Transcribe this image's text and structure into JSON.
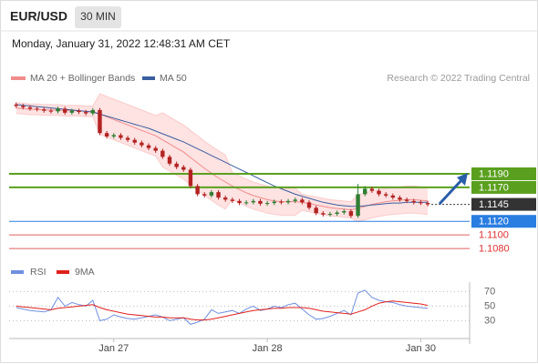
{
  "header": {
    "symbol": "EUR/USD",
    "interval": "30 MIN",
    "timestamp": "Monday, January 31, 2022 12:48:31 AM CET",
    "credit": "Research © 2022 Trading Central"
  },
  "chart_data": [
    {
      "type": "candlestick",
      "xlim": [
        -1,
        65
      ],
      "ylim": [
        1.1064,
        1.1312
      ],
      "candles": {
        "up_color": "#2e7d32",
        "down_color": "#b22222",
        "open": [
          1.1292,
          1.129,
          1.1288,
          1.1286,
          1.1285,
          1.1283,
          1.1282,
          1.1286,
          1.128,
          1.1283,
          1.1281,
          1.1279,
          1.1284,
          1.125,
          1.1245,
          1.1247,
          1.1243,
          1.124,
          1.1236,
          1.1232,
          1.1228,
          1.1224,
          1.1215,
          1.1205,
          1.12,
          1.1196,
          1.1172,
          1.116,
          1.1158,
          1.1163,
          1.1155,
          1.1152,
          1.115,
          1.1147,
          1.1148,
          1.115,
          1.1146,
          1.1147,
          1.1149,
          1.1148,
          1.115,
          1.1152,
          1.1148,
          1.114,
          1.1132,
          1.113,
          1.1131,
          1.1133,
          1.1135,
          1.1128,
          1.116,
          1.1168,
          1.1165,
          1.116,
          1.1158,
          1.1155,
          1.1152,
          1.115,
          1.1148,
          1.1147
        ],
        "high": [
          1.1295,
          1.1293,
          1.1291,
          1.1289,
          1.1288,
          1.1286,
          1.1289,
          1.1289,
          1.1286,
          1.1286,
          1.1284,
          1.1287,
          1.1287,
          1.1253,
          1.125,
          1.125,
          1.1246,
          1.1243,
          1.1239,
          1.1235,
          1.1231,
          1.1227,
          1.1218,
          1.1208,
          1.1203,
          1.1199,
          1.1175,
          1.1163,
          1.1166,
          1.1166,
          1.1158,
          1.1155,
          1.1153,
          1.1151,
          1.1153,
          1.1153,
          1.115,
          1.1152,
          1.1152,
          1.1153,
          1.1155,
          1.1155,
          1.1151,
          1.1143,
          1.1135,
          1.1134,
          1.1136,
          1.1138,
          1.1138,
          1.1175,
          1.1172,
          1.1171,
          1.1168,
          1.1163,
          1.1161,
          1.1158,
          1.1155,
          1.1153,
          1.1151,
          1.115
        ],
        "low": [
          1.1287,
          1.1285,
          1.1283,
          1.1282,
          1.128,
          1.1279,
          1.1279,
          1.1277,
          1.1277,
          1.1278,
          1.1276,
          1.1276,
          1.1247,
          1.1242,
          1.1242,
          1.124,
          1.1237,
          1.1233,
          1.1229,
          1.1225,
          1.1221,
          1.1212,
          1.1202,
          1.1197,
          1.1193,
          1.1169,
          1.1157,
          1.1155,
          1.1155,
          1.1152,
          1.1149,
          1.1147,
          1.1144,
          1.1144,
          1.1145,
          1.1143,
          1.1143,
          1.1144,
          1.1145,
          1.1145,
          1.1147,
          1.1145,
          1.1137,
          1.1129,
          1.1127,
          1.1127,
          1.1128,
          1.113,
          1.1125,
          1.1125,
          1.1157,
          1.1162,
          1.1157,
          1.1155,
          1.1152,
          1.1149,
          1.1147,
          1.1145,
          1.1144,
          1.1142
        ],
        "close": [
          1.129,
          1.1288,
          1.1286,
          1.1285,
          1.1283,
          1.1282,
          1.1286,
          1.128,
          1.1283,
          1.1281,
          1.1279,
          1.1284,
          1.125,
          1.1245,
          1.1247,
          1.1243,
          1.124,
          1.1236,
          1.1232,
          1.1228,
          1.1224,
          1.1215,
          1.1205,
          1.12,
          1.1196,
          1.1172,
          1.116,
          1.1158,
          1.1163,
          1.1155,
          1.1152,
          1.115,
          1.1147,
          1.1148,
          1.115,
          1.1146,
          1.1147,
          1.1149,
          1.1148,
          1.115,
          1.1152,
          1.1148,
          1.114,
          1.1132,
          1.113,
          1.1131,
          1.1133,
          1.1135,
          1.1128,
          1.116,
          1.1168,
          1.1165,
          1.116,
          1.1158,
          1.1155,
          1.1152,
          1.115,
          1.1148,
          1.1147,
          1.1145
        ]
      },
      "bands": {
        "name": "MA 20 + Bollinger Bands",
        "color": "#f08c8c",
        "fill": "#ffd6d6",
        "mid": [
          1.1287,
          1.1286,
          1.1285,
          1.1285,
          1.1284,
          1.1284,
          1.1284,
          1.1283,
          1.1283,
          1.1283,
          1.1282,
          1.1282,
          1.1278,
          1.1274,
          1.127,
          1.1266,
          1.1262,
          1.1258,
          1.1254,
          1.125,
          1.1246,
          1.124,
          1.1234,
          1.1228,
          1.1222,
          1.1214,
          1.1206,
          1.1198,
          1.1191,
          1.1184,
          1.1178,
          1.1172,
          1.1167,
          1.1162,
          1.1158,
          1.1155,
          1.1152,
          1.115,
          1.1149,
          1.1149,
          1.1149,
          1.1148,
          1.1146,
          1.1144,
          1.1142,
          1.114,
          1.1139,
          1.1138,
          1.1137,
          1.1139,
          1.1142,
          1.1145,
          1.1147,
          1.1149,
          1.115,
          1.1151,
          1.1152,
          1.1152,
          1.1151,
          1.115
        ],
        "upper": [
          1.1295,
          1.1294,
          1.1293,
          1.1293,
          1.1292,
          1.1292,
          1.1292,
          1.1291,
          1.1291,
          1.1291,
          1.129,
          1.129,
          1.1308,
          1.1304,
          1.13,
          1.1296,
          1.1292,
          1.1288,
          1.1284,
          1.128,
          1.1276,
          1.128,
          1.1274,
          1.1268,
          1.1262,
          1.1254,
          1.1246,
          1.1238,
          1.1231,
          1.1224,
          1.1218,
          1.1192,
          1.1187,
          1.1182,
          1.1178,
          1.1175,
          1.1172,
          1.117,
          1.1169,
          1.1169,
          1.1169,
          1.116,
          1.1158,
          1.1156,
          1.1154,
          1.1152,
          1.1151,
          1.115,
          1.1149,
          1.1159,
          1.1162,
          1.1165,
          1.1167,
          1.1169,
          1.117,
          1.1171,
          1.1172,
          1.1172,
          1.1171,
          1.117
        ],
        "lower": [
          1.1279,
          1.1278,
          1.1277,
          1.1277,
          1.1276,
          1.1276,
          1.1276,
          1.1275,
          1.1275,
          1.1275,
          1.1274,
          1.1274,
          1.1248,
          1.1244,
          1.124,
          1.1236,
          1.1232,
          1.1228,
          1.1224,
          1.122,
          1.1216,
          1.12,
          1.1194,
          1.1188,
          1.1182,
          1.1174,
          1.1166,
          1.1158,
          1.1151,
          1.1144,
          1.1138,
          1.1152,
          1.1147,
          1.1142,
          1.1138,
          1.1135,
          1.1132,
          1.113,
          1.1129,
          1.1129,
          1.1129,
          1.1136,
          1.1134,
          1.1132,
          1.113,
          1.1128,
          1.1127,
          1.1126,
          1.1125,
          1.1119,
          1.1122,
          1.1125,
          1.1127,
          1.1129,
          1.113,
          1.1131,
          1.1132,
          1.1132,
          1.1131,
          1.113
        ]
      },
      "series": [
        {
          "name": "MA 50",
          "color": "#3a5f9f",
          "values": [
            1.1292,
            1.1291,
            1.129,
            1.1289,
            1.1288,
            1.1287,
            1.1286,
            1.1285,
            1.1284,
            1.1283,
            1.1282,
            1.1281,
            1.1278,
            1.1275,
            1.1272,
            1.1269,
            1.1266,
            1.1263,
            1.126,
            1.1257,
            1.1253,
            1.1249,
            1.1245,
            1.1241,
            1.1237,
            1.1232,
            1.1227,
            1.1222,
            1.1217,
            1.1212,
            1.1207,
            1.1202,
            1.1197,
            1.1192,
            1.1187,
            1.1182,
            1.1177,
            1.1172,
            1.1168,
            1.1164,
            1.116,
            1.1157,
            1.1154,
            1.1151,
            1.1148,
            1.1146,
            1.1144,
            1.1143,
            1.1142,
            1.1142,
            1.1143,
            1.1144,
            1.1145,
            1.1146,
            1.1147,
            1.1147,
            1.1148,
            1.1148,
            1.1148,
            1.1148
          ]
        }
      ],
      "levels": [
        {
          "value": 1.119,
          "label": "1.1190",
          "color": "#5aa01e",
          "line": "solid",
          "width": 2,
          "label_style": "box"
        },
        {
          "value": 1.117,
          "label": "1.1170",
          "color": "#5aa01e",
          "line": "solid",
          "width": 2,
          "label_style": "box"
        },
        {
          "value": 1.1145,
          "label": "1.1145",
          "color": "#333333",
          "line": "dotted",
          "width": 1,
          "label_style": "box"
        },
        {
          "value": 1.112,
          "label": "1.1120",
          "color": "#2a7de1",
          "line": "solid",
          "width": 1,
          "label_style": "box"
        },
        {
          "value": 1.11,
          "label": "1.1100",
          "color": "#e06060",
          "line": "solid",
          "width": 1,
          "label_style": "text"
        },
        {
          "value": 1.108,
          "label": "1.1080",
          "color": "#e06060",
          "line": "solid",
          "width": 1,
          "label_style": "text"
        }
      ]
    },
    {
      "type": "line",
      "xlim": [
        -1,
        65
      ],
      "ylim": [
        8,
        83
      ],
      "yticks": [
        70,
        50,
        30
      ],
      "xticks": [
        {
          "value": 14,
          "label": "Jan 27"
        },
        {
          "value": 36,
          "label": "Jan 28"
        },
        {
          "value": 58,
          "label": "Jan 30"
        }
      ],
      "series": [
        {
          "name": "RSI",
          "color": "#6f8fe0",
          "values": [
            48,
            46,
            44,
            43,
            42,
            45,
            62,
            50,
            55,
            52,
            50,
            58,
            30,
            32,
            38,
            35,
            33,
            32,
            34,
            36,
            38,
            35,
            30,
            32,
            34,
            25,
            28,
            32,
            45,
            40,
            42,
            44,
            40,
            46,
            50,
            44,
            46,
            50,
            48,
            52,
            54,
            46,
            38,
            32,
            33,
            36,
            40,
            44,
            38,
            68,
            72,
            62,
            58,
            56,
            55,
            52,
            50,
            49,
            48,
            47
          ]
        },
        {
          "name": "9MA",
          "color": "#e0201b",
          "values": [
            50,
            49,
            48,
            47,
            46,
            45,
            47,
            48,
            49,
            50,
            51,
            52,
            48,
            45,
            43,
            41,
            39,
            38,
            37,
            36,
            35,
            35,
            34,
            34,
            34,
            32,
            31,
            31,
            32,
            34,
            36,
            38,
            40,
            42,
            44,
            45,
            46,
            47,
            47,
            48,
            48,
            48,
            47,
            45,
            43,
            42,
            41,
            40,
            39,
            42,
            45,
            50,
            54,
            56,
            57,
            56,
            55,
            54,
            53,
            51
          ]
        }
      ]
    }
  ]
}
